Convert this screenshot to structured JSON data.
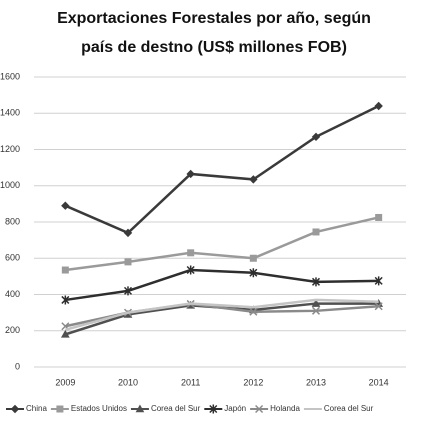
{
  "chart_data": {
    "type": "line",
    "title": "Exportaciones Forestales por año, según país de destno (US$ millones FOB)",
    "categories": [
      "2009",
      "2010",
      "2011",
      "2012",
      "2013",
      "2014"
    ],
    "series": [
      {
        "name": "China",
        "color": "#3a3a3a",
        "marker": "diamond",
        "values": [
          890,
          740,
          1065,
          1035,
          1270,
          1440
        ]
      },
      {
        "name": "Estados Unidos",
        "color": "#9a9a9a",
        "marker": "square",
        "values": [
          535,
          580,
          630,
          600,
          745,
          825
        ]
      },
      {
        "name": "Corea del Sur",
        "color": "#505050",
        "marker": "triangle",
        "values": [
          180,
          290,
          340,
          315,
          350,
          350
        ]
      },
      {
        "name": "Japón",
        "color": "#2e2e2e",
        "marker": "star",
        "values": [
          370,
          420,
          535,
          520,
          470,
          475
        ]
      },
      {
        "name": "Holanda",
        "color": "#8a8a8a",
        "marker": "x",
        "values": [
          225,
          300,
          348,
          305,
          310,
          335
        ]
      },
      {
        "name": "Corea del Sur",
        "color": "#c4c4c4",
        "marker": "none",
        "values": [
          205,
          300,
          350,
          330,
          370,
          360
        ]
      }
    ],
    "ylim": [
      0,
      1600
    ],
    "yticks": [
      0,
      200,
      400,
      600,
      800,
      1000,
      1200,
      1400,
      1600
    ],
    "grid": true,
    "legend": "bottom"
  }
}
